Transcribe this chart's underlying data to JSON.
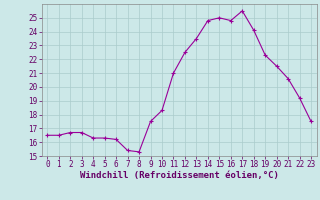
{
  "x": [
    0,
    1,
    2,
    3,
    4,
    5,
    6,
    7,
    8,
    9,
    10,
    11,
    12,
    13,
    14,
    15,
    16,
    17,
    18,
    19,
    20,
    21,
    22,
    23
  ],
  "y": [
    16.5,
    16.5,
    16.7,
    16.7,
    16.3,
    16.3,
    16.2,
    15.4,
    15.3,
    17.5,
    18.3,
    21.0,
    22.5,
    23.5,
    24.8,
    25.0,
    24.8,
    25.5,
    24.1,
    22.3,
    21.5,
    20.6,
    19.2,
    17.5
  ],
  "line_color": "#990099",
  "marker": "+",
  "marker_size": 3,
  "bg_color": "#cce8e8",
  "grid_color": "#aacccc",
  "xlabel": "Windchill (Refroidissement éolien,°C)",
  "ylim": [
    15,
    26
  ],
  "yticks": [
    15,
    16,
    17,
    18,
    19,
    20,
    21,
    22,
    23,
    24,
    25
  ],
  "xticks": [
    0,
    1,
    2,
    3,
    4,
    5,
    6,
    7,
    8,
    9,
    10,
    11,
    12,
    13,
    14,
    15,
    16,
    17,
    18,
    19,
    20,
    21,
    22,
    23
  ],
  "tick_fontsize": 5.5,
  "xlabel_fontsize": 6.5,
  "linewidth": 0.8,
  "marker_edge_width": 0.8,
  "spine_color": "#888888"
}
